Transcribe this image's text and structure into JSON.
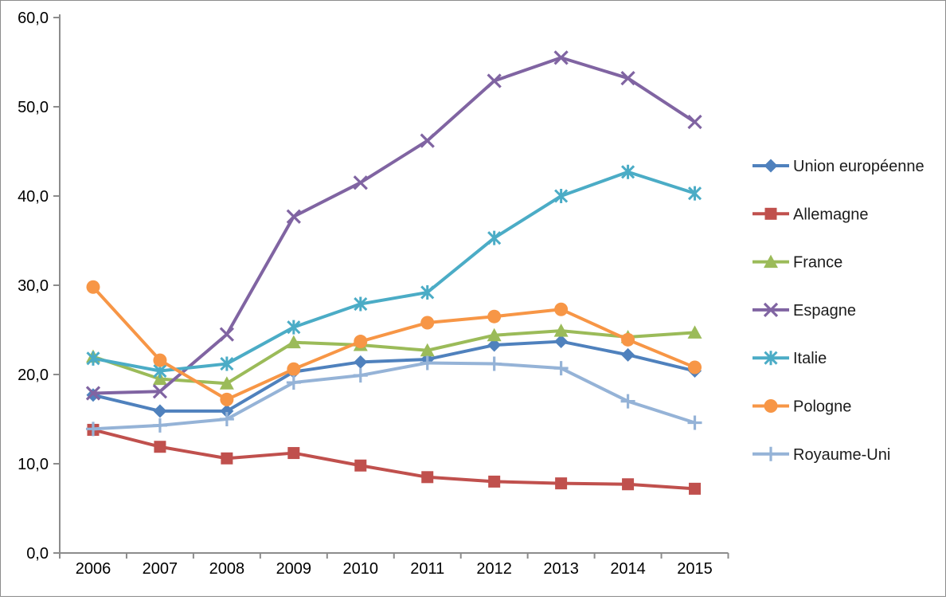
{
  "chart_data": {
    "type": "line",
    "categories": [
      "2006",
      "2007",
      "2008",
      "2009",
      "2010",
      "2011",
      "2012",
      "2013",
      "2014",
      "2015"
    ],
    "y_axis": {
      "min": 0,
      "max": 60,
      "step": 10,
      "tick_labels": [
        "0,0",
        "10,0",
        "20,0",
        "30,0",
        "40,0",
        "50,0",
        "60,0"
      ],
      "decimal_separator": ","
    },
    "grid": false,
    "legend_position": "right",
    "series": [
      {
        "name": "Union européenne",
        "color": "#4F81BD",
        "marker": "diamond",
        "values": [
          17.7,
          15.9,
          15.9,
          20.3,
          21.4,
          21.7,
          23.3,
          23.7,
          22.2,
          20.4
        ]
      },
      {
        "name": "Allemagne",
        "color": "#C0504D",
        "marker": "square",
        "values": [
          13.8,
          11.9,
          10.6,
          11.2,
          9.8,
          8.5,
          8.0,
          7.8,
          7.7,
          7.2
        ]
      },
      {
        "name": "France",
        "color": "#9BBB59",
        "marker": "triangle",
        "values": [
          22.0,
          19.5,
          19.0,
          23.6,
          23.3,
          22.7,
          24.4,
          24.9,
          24.2,
          24.7
        ]
      },
      {
        "name": "Espagne",
        "color": "#8064A2",
        "marker": "x",
        "values": [
          17.9,
          18.1,
          24.5,
          37.7,
          41.5,
          46.2,
          52.9,
          55.5,
          53.2,
          48.3
        ]
      },
      {
        "name": "Italie",
        "color": "#4BACC6",
        "marker": "asterisk",
        "values": [
          21.8,
          20.4,
          21.2,
          25.3,
          27.9,
          29.2,
          35.3,
          40.0,
          42.7,
          40.3
        ]
      },
      {
        "name": "Pologne",
        "color": "#F79646",
        "marker": "circle",
        "values": [
          29.8,
          21.6,
          17.2,
          20.6,
          23.7,
          25.8,
          26.5,
          27.3,
          23.9,
          20.8
        ]
      },
      {
        "name": "Royaume-Uni",
        "color": "#95B3D7",
        "marker": "plus",
        "values": [
          13.9,
          14.3,
          15.0,
          19.1,
          19.9,
          21.3,
          21.2,
          20.7,
          17.0,
          14.6
        ]
      }
    ],
    "style": {
      "axis_color": "#8C8C8C",
      "text_color": "#000000",
      "frame_border_color": "#8C8C8C",
      "background": "#FFFFFF"
    }
  }
}
